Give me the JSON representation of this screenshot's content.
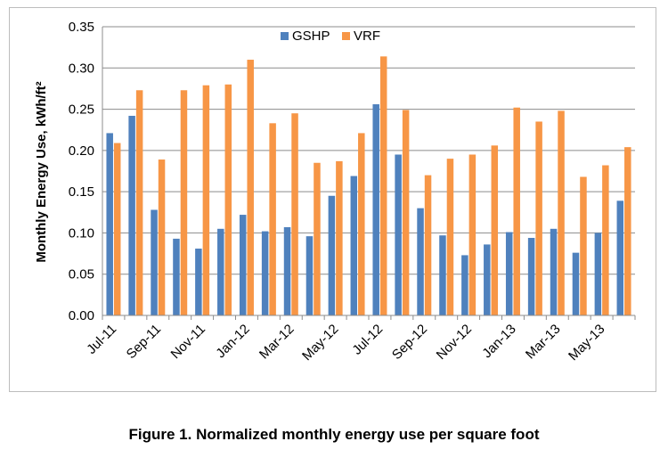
{
  "caption": "Figure 1.  Normalized monthly energy use per square foot",
  "chart_data": {
    "type": "bar",
    "title": "",
    "xlabel": "",
    "ylabel": "Monthly Energy Use, kWh/ft²",
    "ylim": [
      0,
      0.35
    ],
    "yticks": [
      "0.00",
      "0.05",
      "0.10",
      "0.15",
      "0.20",
      "0.25",
      "0.30",
      "0.35"
    ],
    "grid": "horizontal",
    "legend_position": "top-center",
    "categories": [
      "Jul-11",
      "Aug-11",
      "Sep-11",
      "Oct-11",
      "Nov-11",
      "Dec-11",
      "Jan-12",
      "Feb-12",
      "Mar-12",
      "Apr-12",
      "May-12",
      "Jun-12",
      "Jul-12",
      "Aug-12",
      "Sep-12",
      "Oct-12",
      "Nov-12",
      "Dec-12",
      "Jan-13",
      "Feb-13",
      "Mar-13",
      "Apr-13",
      "May-13",
      "Jun-13"
    ],
    "x_tick_labels": [
      "Jul-11",
      "Sep-11",
      "Nov-11",
      "Jan-12",
      "Mar-12",
      "May-12",
      "Jul-12",
      "Sep-12",
      "Nov-12",
      "Jan-13",
      "Mar-13",
      "May-13"
    ],
    "series": [
      {
        "name": "GSHP",
        "color": "#4F81BD",
        "values": [
          0.221,
          0.242,
          0.128,
          0.093,
          0.081,
          0.105,
          0.122,
          0.102,
          0.107,
          0.096,
          0.145,
          0.169,
          0.256,
          0.195,
          0.13,
          0.097,
          0.073,
          0.086,
          0.101,
          0.094,
          0.105,
          0.076,
          0.1,
          0.139
        ]
      },
      {
        "name": "VRF",
        "color": "#F79646",
        "values": [
          0.209,
          0.273,
          0.189,
          0.273,
          0.279,
          0.28,
          0.31,
          0.233,
          0.245,
          0.185,
          0.187,
          0.221,
          0.314,
          0.249,
          0.17,
          0.19,
          0.195,
          0.206,
          0.252,
          0.235,
          0.248,
          0.168,
          0.182,
          0.204
        ]
      }
    ]
  }
}
